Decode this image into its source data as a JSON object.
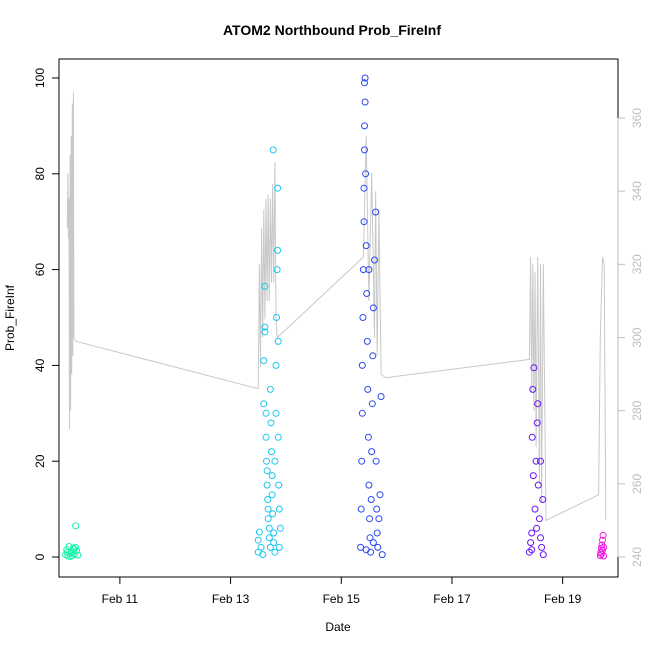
{
  "chart_data": {
    "type": "scatter",
    "title": "ATOM2 Northbound Prob_FireInf",
    "xlabel": "Date",
    "ylabel": "Prob_FireInf",
    "ylim": [
      0,
      100
    ],
    "y2lim": [
      240,
      370
    ],
    "x_unit": "days in February",
    "xlim": [
      9.9,
      20.0
    ],
    "x_ticks": [
      {
        "value": 11,
        "label": "Feb 11"
      },
      {
        "value": 13,
        "label": "Feb 13"
      },
      {
        "value": 15,
        "label": "Feb 15"
      },
      {
        "value": 17,
        "label": "Feb 17"
      },
      {
        "value": 19,
        "label": "Feb 19"
      }
    ],
    "y_ticks": [
      0,
      20,
      40,
      60,
      80,
      100
    ],
    "y2_ticks": [
      240,
      260,
      280,
      300,
      320,
      340,
      360
    ],
    "grid": false,
    "series": [
      {
        "color": "#19f5a8",
        "points": [
          [
            10.02,
            0.5
          ],
          [
            10.04,
            1.5
          ],
          [
            10.06,
            0.2
          ],
          [
            10.08,
            2.2
          ],
          [
            10.1,
            0.8
          ],
          [
            10.12,
            1.1
          ],
          [
            10.14,
            0.3
          ],
          [
            10.16,
            1.9
          ],
          [
            10.18,
            0.6
          ],
          [
            10.2,
            2.0
          ],
          [
            10.22,
            1.3
          ],
          [
            10.24,
            0.4
          ],
          [
            10.05,
            1.0
          ],
          [
            10.11,
            0.1
          ],
          [
            10.17,
            1.6
          ],
          [
            10.2,
            6.5
          ]
        ]
      },
      {
        "color": "#19c8f0",
        "points": [
          [
            13.5,
            1.0
          ],
          [
            13.5,
            3.5
          ],
          [
            13.52,
            5.2
          ],
          [
            13.55,
            2.0
          ],
          [
            13.58,
            0.5
          ],
          [
            13.6,
            32.0
          ],
          [
            13.6,
            41.0
          ],
          [
            13.62,
            47.0
          ],
          [
            13.62,
            48.0
          ],
          [
            13.64,
            30.0
          ],
          [
            13.64,
            25.0
          ],
          [
            13.65,
            20.0
          ],
          [
            13.66,
            18.0
          ],
          [
            13.66,
            15.0
          ],
          [
            13.67,
            12.0
          ],
          [
            13.68,
            10.0
          ],
          [
            13.68,
            8.0
          ],
          [
            13.7,
            6.0
          ],
          [
            13.7,
            4.0
          ],
          [
            13.72,
            2.0
          ],
          [
            13.72,
            35.0
          ],
          [
            13.73,
            28.0
          ],
          [
            13.74,
            22.0
          ],
          [
            13.75,
            17.0
          ],
          [
            13.75,
            13.0
          ],
          [
            13.76,
            9.0
          ],
          [
            13.78,
            5.0
          ],
          [
            13.78,
            3.0
          ],
          [
            13.8,
            1.0
          ],
          [
            13.8,
            20.0
          ],
          [
            13.82,
            30.0
          ],
          [
            13.82,
            40.0
          ],
          [
            13.83,
            50.0
          ],
          [
            13.84,
            60.0
          ],
          [
            13.85,
            64.0
          ],
          [
            13.85,
            77.0
          ],
          [
            13.77,
            85.0
          ],
          [
            13.62,
            56.5
          ],
          [
            13.86,
            45.0
          ],
          [
            13.86,
            25.0
          ],
          [
            13.87,
            15.0
          ],
          [
            13.88,
            10.0
          ],
          [
            13.88,
            2.0
          ],
          [
            13.9,
            6.0
          ]
        ]
      },
      {
        "color": "#2b4af0",
        "points": [
          [
            15.35,
            2.0
          ],
          [
            15.36,
            10.0
          ],
          [
            15.37,
            20.0
          ],
          [
            15.38,
            30.0
          ],
          [
            15.38,
            40.0
          ],
          [
            15.39,
            50.0
          ],
          [
            15.4,
            60.0
          ],
          [
            15.41,
            70.0
          ],
          [
            15.41,
            77.0
          ],
          [
            15.42,
            85.0
          ],
          [
            15.42,
            90.0
          ],
          [
            15.43,
            95.0
          ],
          [
            15.43,
            100.0
          ],
          [
            15.42,
            99.0
          ],
          [
            15.44,
            80.0
          ],
          [
            15.45,
            65.0
          ],
          [
            15.46,
            55.0
          ],
          [
            15.47,
            45.0
          ],
          [
            15.48,
            35.0
          ],
          [
            15.49,
            25.0
          ],
          [
            15.5,
            15.0
          ],
          [
            15.51,
            8.0
          ],
          [
            15.52,
            4.0
          ],
          [
            15.53,
            1.0
          ],
          [
            15.54,
            12.0
          ],
          [
            15.55,
            22.0
          ],
          [
            15.56,
            32.0
          ],
          [
            15.57,
            42.0
          ],
          [
            15.58,
            52.0
          ],
          [
            15.6,
            62.0
          ],
          [
            15.62,
            72.0
          ],
          [
            15.63,
            20.0
          ],
          [
            15.64,
            10.0
          ],
          [
            15.65,
            5.0
          ],
          [
            15.66,
            2.0
          ],
          [
            15.68,
            8.0
          ],
          [
            15.7,
            13.0
          ],
          [
            15.72,
            33.5
          ],
          [
            15.74,
            0.5
          ],
          [
            15.45,
            1.5
          ],
          [
            15.58,
            3.0
          ],
          [
            15.5,
            60.0
          ]
        ]
      },
      {
        "color": "#6a16f5",
        "points": [
          [
            18.4,
            1.0
          ],
          [
            18.42,
            3.0
          ],
          [
            18.44,
            5.0
          ],
          [
            18.45,
            25.0
          ],
          [
            18.46,
            35.0
          ],
          [
            18.48,
            39.5
          ],
          [
            18.5,
            10.0
          ],
          [
            18.52,
            20.0
          ],
          [
            18.54,
            28.0
          ],
          [
            18.55,
            32.0
          ],
          [
            18.56,
            15.0
          ],
          [
            18.58,
            8.0
          ],
          [
            18.6,
            4.0
          ],
          [
            18.62,
            2.0
          ],
          [
            18.64,
            12.0
          ],
          [
            18.65,
            0.5
          ],
          [
            18.47,
            17.0
          ],
          [
            18.53,
            6.0
          ],
          [
            18.6,
            20.0
          ],
          [
            18.44,
            1.5
          ]
        ]
      },
      {
        "color": "#f01ae6",
        "points": [
          [
            19.68,
            0.3
          ],
          [
            19.69,
            1.0
          ],
          [
            19.7,
            1.8
          ],
          [
            19.71,
            2.5
          ],
          [
            19.72,
            3.5
          ],
          [
            19.73,
            4.5
          ],
          [
            19.7,
            0.6
          ],
          [
            19.72,
            1.4
          ],
          [
            19.74,
            2.0
          ],
          [
            19.74,
            0.2
          ]
        ]
      }
    ],
    "secondary_line": {
      "axis": "right",
      "color": "#c8c8c8",
      "points": [
        [
          10.05,
          330
        ],
        [
          10.06,
          345
        ],
        [
          10.07,
          327
        ],
        [
          10.08,
          338
        ],
        [
          10.09,
          275
        ],
        [
          10.1,
          350
        ],
        [
          10.11,
          280
        ],
        [
          10.12,
          355
        ],
        [
          10.13,
          290
        ],
        [
          10.14,
          364
        ],
        [
          10.15,
          295
        ],
        [
          10.16,
          367
        ],
        [
          10.17,
          300
        ],
        [
          10.2,
          299
        ],
        [
          13.5,
          286
        ],
        [
          13.52,
          320
        ],
        [
          13.54,
          292
        ],
        [
          13.56,
          330
        ],
        [
          13.58,
          300
        ],
        [
          13.6,
          335
        ],
        [
          13.62,
          305
        ],
        [
          13.64,
          338
        ],
        [
          13.66,
          310
        ],
        [
          13.68,
          339
        ],
        [
          13.7,
          310
        ],
        [
          13.72,
          338
        ],
        [
          13.74,
          315
        ],
        [
          13.76,
          342
        ],
        [
          13.78,
          315
        ],
        [
          13.8,
          348
        ],
        [
          13.82,
          305
        ],
        [
          13.84,
          300
        ],
        [
          14.2,
          305
        ],
        [
          15.4,
          322
        ],
        [
          15.45,
          355
        ],
        [
          15.5,
          310
        ],
        [
          15.55,
          345
        ],
        [
          15.6,
          300
        ],
        [
          15.62,
          340
        ],
        [
          15.65,
          295
        ],
        [
          15.68,
          335
        ],
        [
          15.72,
          290
        ],
        [
          15.8,
          289
        ],
        [
          18.4,
          294
        ],
        [
          18.42,
          322
        ],
        [
          18.44,
          285
        ],
        [
          18.46,
          320
        ],
        [
          18.48,
          280
        ],
        [
          18.5,
          318
        ],
        [
          18.52,
          270
        ],
        [
          18.55,
          322
        ],
        [
          18.58,
          260
        ],
        [
          18.6,
          320
        ],
        [
          18.62,
          255
        ],
        [
          18.65,
          320
        ],
        [
          18.7,
          250
        ],
        [
          19.65,
          257
        ],
        [
          19.68,
          300
        ],
        [
          19.72,
          322
        ],
        [
          19.75,
          320
        ],
        [
          19.78,
          250
        ]
      ]
    }
  }
}
